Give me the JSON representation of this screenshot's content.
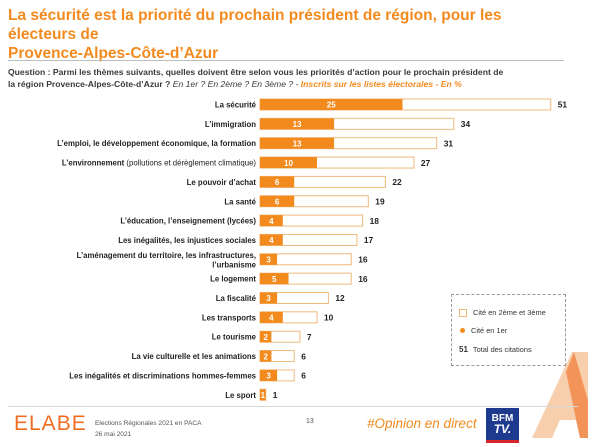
{
  "title": {
    "line1": "La sécurité est la priorité du prochain président de région, pour les électeurs de",
    "line2": "Provence-Alpes-Côte-d’Azur"
  },
  "question": {
    "label": "Question : Parmi les thèmes suivants, quelles doivent être selon vous les priorités d’action pour le prochain président de",
    "label2": "la région Provence-Alpes-Côte-d’Azur ?",
    "ranks": "En 1er ? En 2ème ? En 3ème ? -",
    "note": "Inscrits sur les listes électorales - En %"
  },
  "chart_data": {
    "type": "bar",
    "orientation": "horizontal",
    "categories": [
      "La sécurité",
      "L’immigration",
      "L’emploi, le développement économique, la formation",
      "L’environnement (pollutions et dérèglement climatique)",
      "Le pouvoir d’achat",
      "La santé",
      "L’éducation, l’enseignement (lycées)",
      "Les inégalités, les injustices sociales",
      "L’aménagement du territoire, les infrastructures, l’urbanisme",
      "Le logement",
      "La fiscalité",
      "Les transports",
      "Le tourisme",
      "La vie culturelle et les animations",
      "Les inégalités et discriminations hommes-femmes",
      "Le sport"
    ],
    "label_lines": [
      [
        "La sécurité"
      ],
      [
        "L’immigration"
      ],
      [
        "L’emploi, le développement économique, la formation"
      ],
      [
        "L’environnement",
        " (pollutions et dérèglement climatique)"
      ],
      [
        "Le pouvoir d’achat"
      ],
      [
        "La santé"
      ],
      [
        "L’éducation, l’enseignement (lycées)"
      ],
      [
        "Les inégalités, les injustices sociales"
      ],
      [
        "L’aménagement du territoire, les infrastructures,",
        "l’urbanisme"
      ],
      [
        "Le logement"
      ],
      [
        "La fiscalité"
      ],
      [
        "Les transports"
      ],
      [
        "Le tourisme"
      ],
      [
        "La vie culturelle et les animations"
      ],
      [
        "Les inégalités et discriminations hommes-femmes"
      ],
      [
        "Le sport"
      ]
    ],
    "series": [
      {
        "name": "Cité en 1er",
        "values": [
          25,
          13,
          13,
          10,
          6,
          6,
          4,
          4,
          3,
          5,
          3,
          4,
          2,
          2,
          3,
          1
        ]
      },
      {
        "name": "Total des citations",
        "values": [
          51,
          34,
          31,
          27,
          22,
          19,
          18,
          17,
          16,
          16,
          12,
          10,
          7,
          6,
          6,
          1
        ]
      }
    ],
    "xlim": [
      0,
      51
    ],
    "colors": {
      "first": "#f28a1e",
      "total_border": "#f0b97c",
      "total_fill": "#ffffff",
      "text_dark": "#222222"
    }
  },
  "legend": {
    "item1": "Cité en 2ème et 3ème",
    "item2": "Cité en 1er",
    "item3_number": "51",
    "item3": "Total des citations"
  },
  "footer": {
    "brand": "ELABE",
    "source_line1": "Elections Régionales 2021 en PACA",
    "source_line2": "26 mai 2021",
    "page": "13",
    "hashtag": "#Opinion en direct",
    "channel_top": "BFM",
    "channel_bottom": "TV."
  }
}
